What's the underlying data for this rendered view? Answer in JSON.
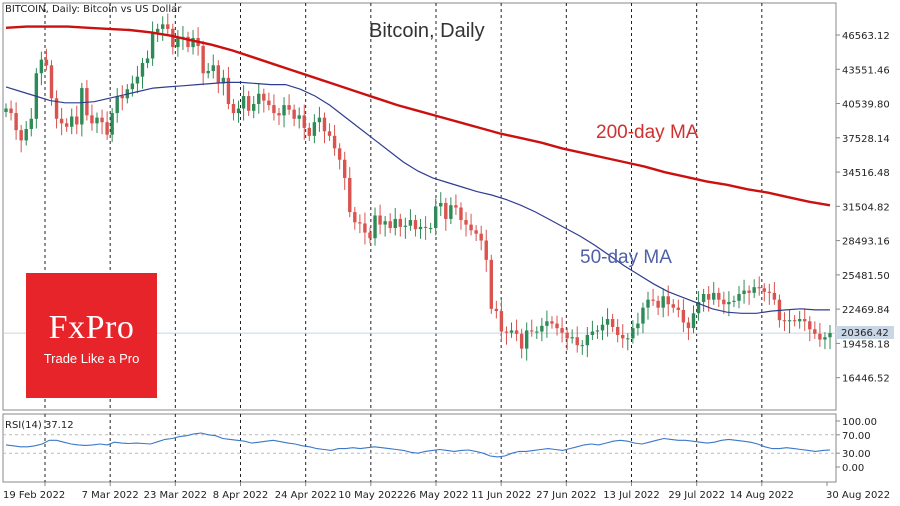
{
  "chart_data": [
    {
      "type": "candlestick",
      "header": "BITCOIN, Daily: Bitcoin vs US Dollar",
      "title": "Bitcoin, Daily",
      "ylim": [
        15000,
        49000
      ],
      "y_ticks": [
        "46563.12",
        "43551.46",
        "40539.80",
        "37528.14",
        "34516.48",
        "31504.82",
        "28493.16",
        "25481.50",
        "22469.84",
        "19458.18",
        "16446.52"
      ],
      "x_ticks": [
        "19 Feb 2022",
        "7 Mar 2022",
        "23 Mar 2022",
        "8 Apr 2022",
        "24 Apr 2022",
        "10 May 2022",
        "26 May 2022",
        "11 Jun 2022",
        "27 Jun 2022",
        "13 Jul 2022",
        "29 Jul 2022",
        "14 Aug 2022",
        "30 Aug 2022"
      ],
      "current_price": "20366.42",
      "ohlc": {
        "start_date": "2022-02-19",
        "end_date": "2022-08-30",
        "close": [
          40100,
          39700,
          38200,
          37300,
          38300,
          39200,
          43200,
          44400,
          43900,
          41000,
          39200,
          38800,
          38500,
          39400,
          38700,
          41900,
          39500,
          38800,
          39300,
          38900,
          37800,
          39700,
          41200,
          41000,
          41800,
          42300,
          42900,
          44100,
          44500,
          46800,
          47100,
          47500,
          47100,
          45500,
          46300,
          46400,
          45500,
          46300,
          45600,
          43200,
          43400,
          43900,
          42300,
          42800,
          40500,
          39700,
          40100,
          41200,
          39900,
          40500,
          41400,
          40800,
          40400,
          39700,
          39500,
          40400,
          40000,
          39200,
          39500,
          38400,
          37700,
          38900,
          39300,
          38100,
          37700,
          36600,
          35600,
          34000,
          31000,
          30100,
          30000,
          29200,
          28700,
          30700,
          29900,
          30200,
          29600,
          30400,
          29700,
          29800,
          30300,
          29500,
          29700,
          29600,
          29600,
          31500,
          31800,
          30400,
          31600,
          31400,
          30300,
          29900,
          29400,
          29100,
          28500,
          26800,
          22500,
          22300,
          20500,
          20400,
          20600,
          20300,
          19000,
          20600,
          20500,
          20500,
          21000,
          21400,
          21200,
          20800,
          20400,
          19900,
          20000,
          19300,
          19300,
          20200,
          20500,
          20600,
          21100,
          21600,
          20900,
          20200,
          19900,
          19900,
          20800,
          21200,
          22600,
          23300,
          23200,
          22600,
          23600,
          22900,
          22600,
          22400,
          21300,
          20800,
          22100,
          23100,
          23800,
          23300,
          23900,
          23300,
          22900,
          23100,
          23200,
          23800,
          24100,
          23900,
          24400,
          24300,
          24000,
          23900,
          23300,
          21500,
          21400,
          21500,
          21400,
          21600,
          21400,
          20700,
          20300,
          19800,
          20000,
          20370
        ],
        "note": "Daily OHLC estimated from candlesticks; open of each day ≈ prior close."
      },
      "series": [
        {
          "name": "50-day MA",
          "color": "#2f3d8f",
          "values": [
            42000,
            41600,
            41200,
            40800,
            40600,
            40600,
            40700,
            41000,
            41300,
            41600,
            41900,
            42000,
            42100,
            42200,
            42300,
            42400,
            42400,
            42300,
            42200,
            42200,
            41800,
            41200,
            40400,
            39400,
            38400,
            37400,
            36400,
            35400,
            34600,
            34000,
            33600,
            33200,
            32800,
            32500,
            32100,
            31600,
            31000,
            30300,
            29600,
            28900,
            28100,
            27200,
            26300,
            25500,
            24700,
            24000,
            23500,
            23000,
            22500,
            22200,
            22100,
            22100,
            22300,
            22400,
            22500,
            22400,
            22400
          ]
        },
        {
          "name": "200-day MA",
          "color": "#cc1010",
          "values": [
            47200,
            47300,
            47300,
            47300,
            47200,
            47100,
            47000,
            46800,
            46500,
            46100,
            45700,
            45200,
            44600,
            44000,
            43400,
            42800,
            42200,
            41600,
            41000,
            40400,
            39900,
            39400,
            38900,
            38400,
            37900,
            37500,
            37100,
            36600,
            36200,
            35800,
            35400,
            35000,
            34500,
            34100,
            33700,
            33400,
            33000,
            32700,
            32300,
            31900,
            31600
          ]
        }
      ],
      "labels": {
        "ma200": "200-day MA",
        "ma50": "50-day MA"
      }
    },
    {
      "type": "line",
      "header": "RSI(14) 37.12",
      "ylim": [
        0,
        100
      ],
      "y_ticks": [
        "100.00",
        "70.00",
        "30.00",
        "0.00"
      ],
      "levels": [
        70,
        30
      ],
      "series": [
        {
          "name": "RSI(14)",
          "color": "#3a78c9",
          "values": [
            48,
            46,
            44,
            44,
            46,
            50,
            58,
            58,
            54,
            50,
            48,
            47,
            48,
            50,
            48,
            54,
            52,
            51,
            52,
            51,
            50,
            55,
            60,
            62,
            66,
            68,
            72,
            74,
            70,
            68,
            62,
            60,
            58,
            56,
            52,
            54,
            56,
            58,
            55,
            52,
            50,
            46,
            44,
            40,
            38,
            36,
            40,
            40,
            42,
            40,
            42,
            44,
            42,
            40,
            38,
            36,
            32,
            30,
            34,
            36,
            38,
            36,
            34,
            36,
            37,
            34,
            30,
            24,
            22,
            24,
            30,
            34,
            34,
            36,
            38,
            40,
            38,
            36,
            40,
            44,
            48,
            50,
            48,
            52,
            56,
            58,
            56,
            52,
            50,
            54,
            58,
            62,
            60,
            58,
            58,
            56,
            54,
            52,
            54,
            58,
            60,
            58,
            56,
            54,
            50,
            44,
            40,
            40,
            42,
            40,
            38,
            36,
            34,
            36,
            37.12
          ]
        }
      ]
    }
  ],
  "logo": {
    "name": "FxPro",
    "tagline": "Trade Like a Pro"
  }
}
